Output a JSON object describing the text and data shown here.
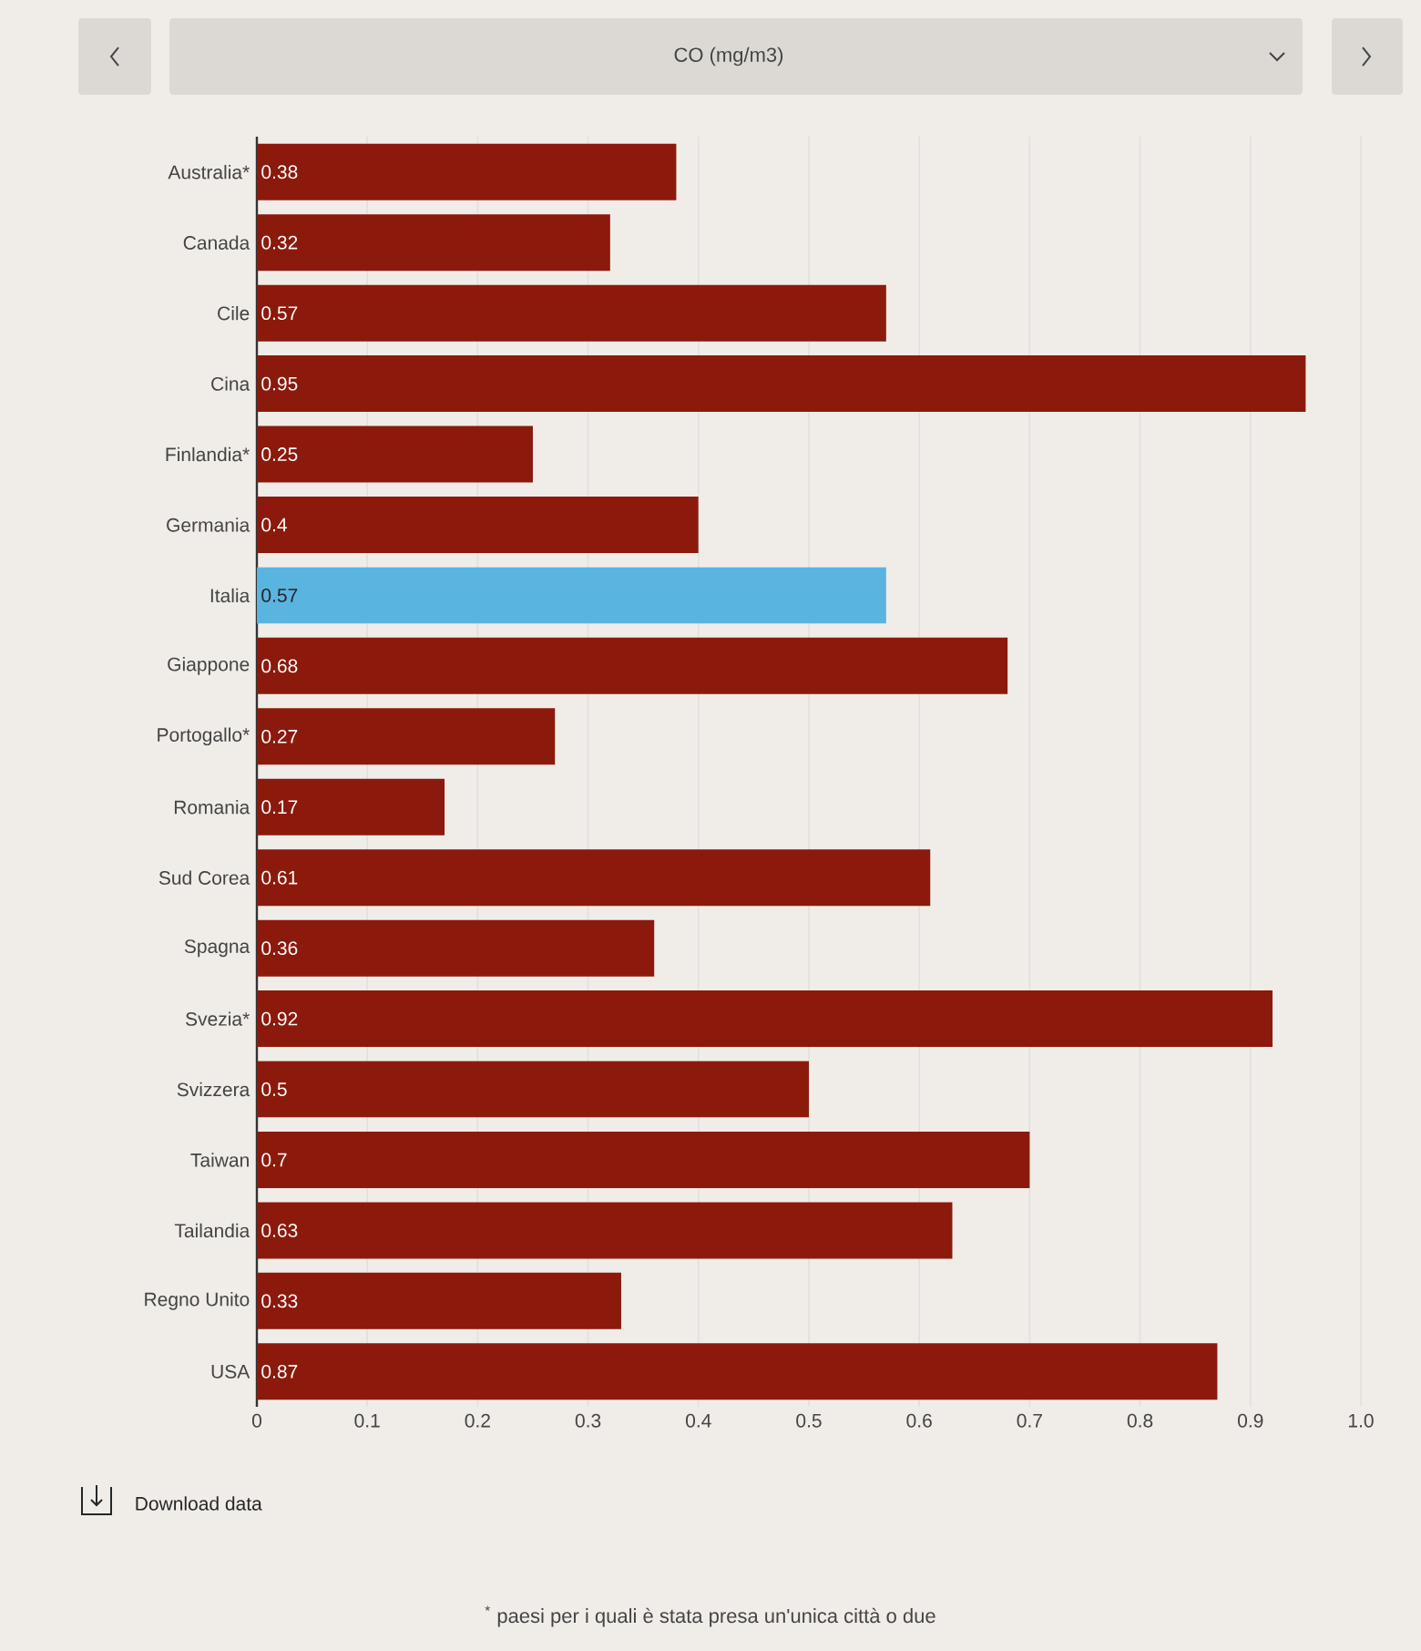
{
  "chart_data": {
    "type": "bar",
    "orientation": "horizontal",
    "title": "CO (mg/m3)",
    "categories": [
      "Australia*",
      "Canada",
      "Cile",
      "Cina",
      "Finlandia*",
      "Germania",
      "Italia",
      "Giappone",
      "Portogallo*",
      "Romania",
      "Sud Corea",
      "Spagna",
      "Svezia*",
      "Svizzera",
      "Taiwan",
      "Tailandia",
      "Regno Unito",
      "USA"
    ],
    "values": [
      0.38,
      0.32,
      0.57,
      0.95,
      0.25,
      0.4,
      0.57,
      0.68,
      0.27,
      0.17,
      0.61,
      0.36,
      0.92,
      0.5,
      0.7,
      0.63,
      0.33,
      0.87
    ],
    "colors": [
      "#8b1a0d",
      "#8b1a0d",
      "#8b1a0d",
      "#8b1a0d",
      "#8b1a0d",
      "#8b1a0d",
      "#5ab4e0",
      "#8b1a0d",
      "#8b1a0d",
      "#8b1a0d",
      "#8b1a0d",
      "#8b1a0d",
      "#8b1a0d",
      "#8b1a0d",
      "#8b1a0d",
      "#8b1a0d",
      "#8b1a0d",
      "#8b1a0d"
    ],
    "data_labels": true,
    "xlim": [
      0,
      1
    ],
    "xticks": [
      0,
      0.1,
      0.2,
      0.3,
      0.4,
      0.5,
      0.6,
      0.7,
      0.8,
      0.9,
      {
        "value": 1,
        "label": "1.0"
      }
    ],
    "grid": "x",
    "annotations": [
      "Download data",
      "$^{*}$ paesi per i quali è stata presa un'unica città o due"
    ]
  }
}
